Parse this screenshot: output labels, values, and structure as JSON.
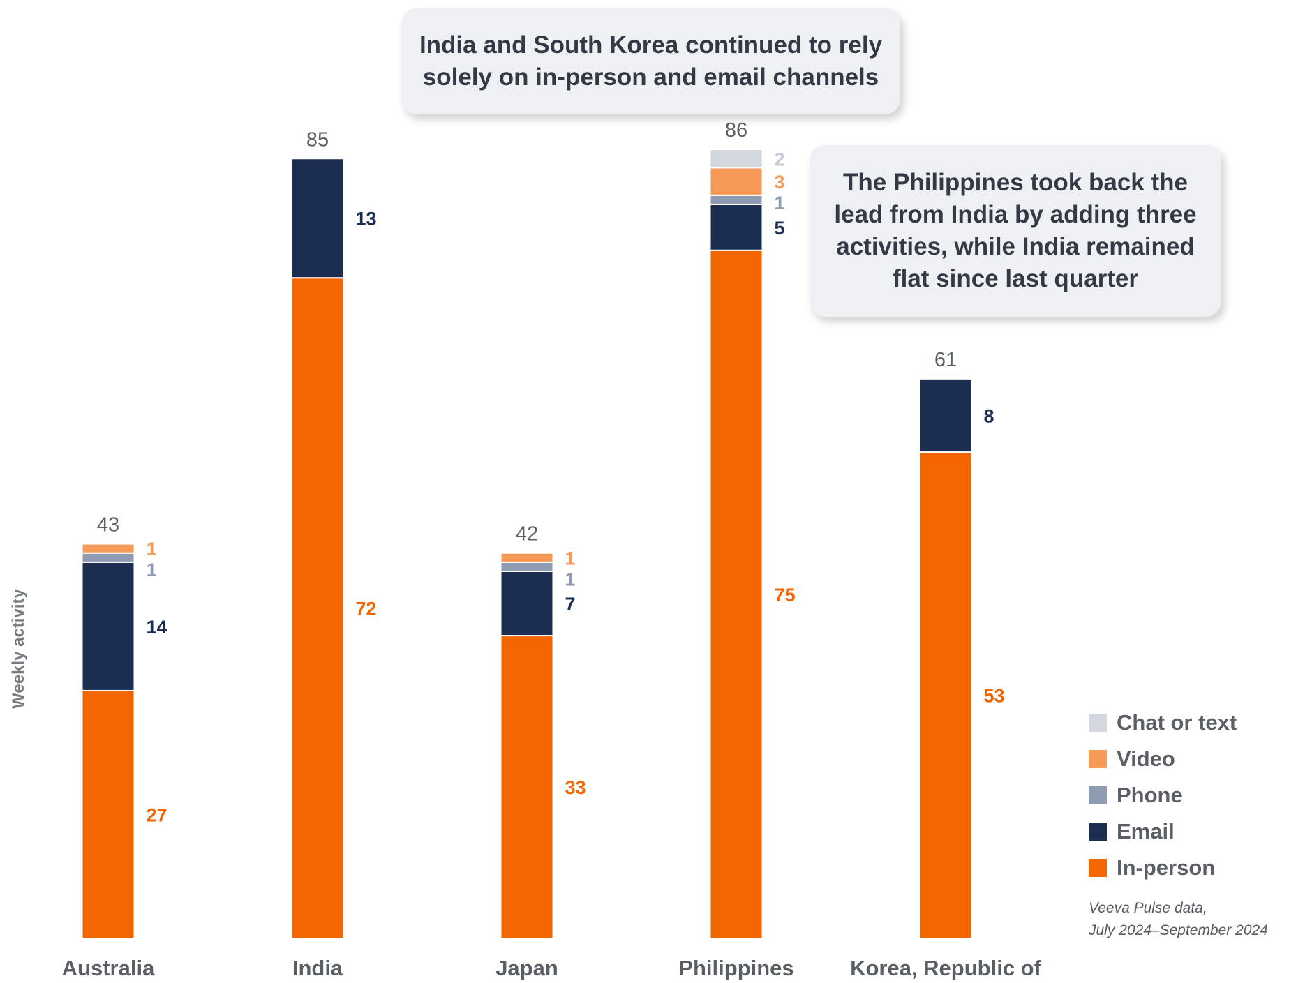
{
  "chart_data": {
    "type": "bar",
    "stacked": true,
    "ylabel": "Weekly activity",
    "categories": [
      "Australia",
      "India",
      "Japan",
      "Philippines",
      "Korea, Republic of"
    ],
    "totals": [
      43,
      85,
      42,
      86,
      61
    ],
    "series": [
      {
        "name": "In-person",
        "color": "#f26500",
        "values": [
          27,
          72,
          33,
          75,
          53
        ]
      },
      {
        "name": "Email",
        "color": "#1c2d52",
        "values": [
          14,
          13,
          7,
          5,
          8
        ]
      },
      {
        "name": "Phone",
        "color": "#8e9bb2",
        "values": [
          1,
          0,
          1,
          1,
          0
        ]
      },
      {
        "name": "Video",
        "color": "#f79a55",
        "values": [
          1,
          0,
          1,
          3,
          0
        ]
      },
      {
        "name": "Chat or text",
        "color": "#d3d7de",
        "values": [
          0,
          0,
          0,
          2,
          0
        ]
      }
    ],
    "legend": {
      "position": "bottom-right",
      "entries": [
        "Chat or text",
        "Video",
        "Phone",
        "Email",
        "In-person"
      ]
    },
    "annotations": [
      "India and South Korea continued to rely solely on in-person and email channels",
      "The Philippines took back the lead from India by adding three activities, while India remained flat since last quarter"
    ],
    "source": [
      "Veeva Pulse data,",
      "July 2024–September 2024"
    ],
    "grid": false
  }
}
